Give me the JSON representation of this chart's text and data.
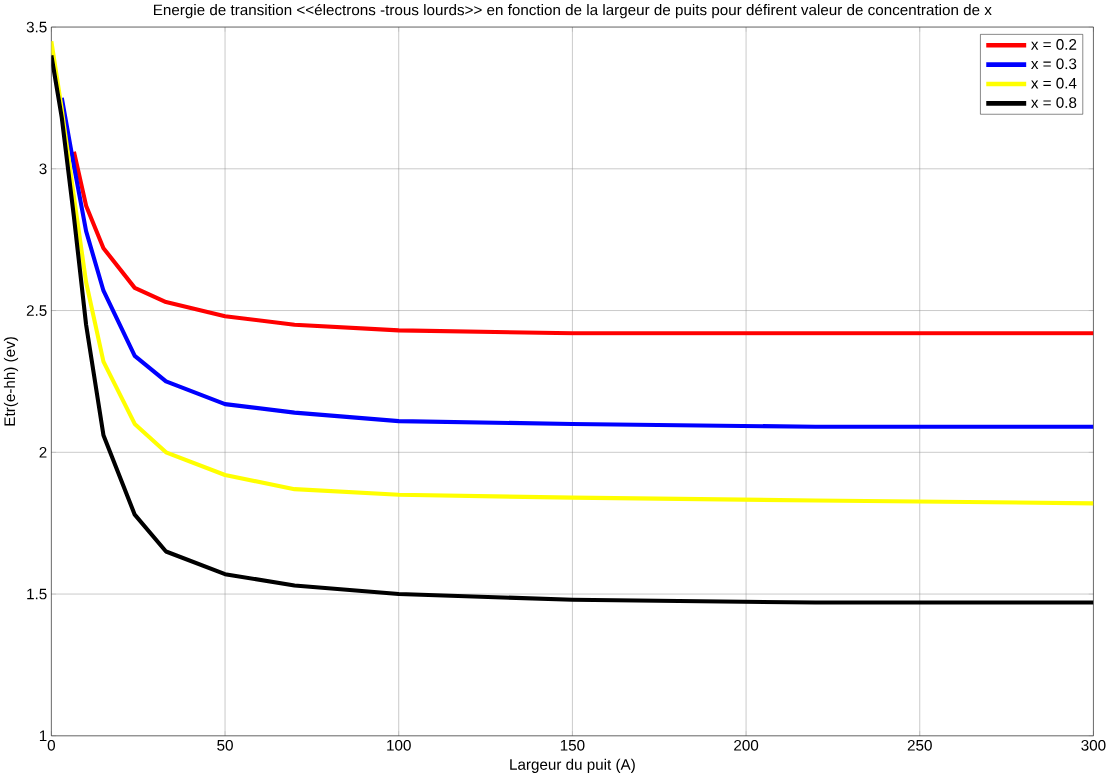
{
  "chart_data": {
    "type": "line",
    "title": "Energie de transition <<électrons -trous lourds>> en fonction de la largeur de puits pour défirent valeur de concentration de x",
    "xlabel": "Largeur du puit (A)",
    "ylabel": "Etr(e-hh) (ev)",
    "x": [
      0,
      3,
      6.5,
      10,
      15,
      24,
      33,
      50,
      70,
      100,
      150,
      220,
      300
    ],
    "series": [
      {
        "name": "x = 0.2",
        "color": "#ff0000",
        "values": [
          null,
          null,
          3.06,
          2.87,
          2.72,
          2.58,
          2.53,
          2.48,
          2.45,
          2.43,
          2.42,
          2.42,
          2.42
        ]
      },
      {
        "name": "x = 0.3",
        "color": "#0000ff",
        "values": [
          null,
          3.25,
          3.01,
          2.78,
          2.57,
          2.34,
          2.25,
          2.17,
          2.14,
          2.11,
          2.1,
          2.09,
          2.09
        ]
      },
      {
        "name": "x = 0.4",
        "color": "#ffff00",
        "values": [
          3.45,
          3.21,
          2.9,
          2.6,
          2.32,
          2.1,
          2.0,
          1.92,
          1.87,
          1.85,
          1.84,
          1.83,
          1.82
        ]
      },
      {
        "name": "x = 0.8",
        "color": "#000000",
        "values": [
          3.4,
          3.18,
          2.83,
          2.45,
          2.06,
          1.78,
          1.65,
          1.57,
          1.53,
          1.5,
          1.48,
          1.47,
          1.47
        ]
      }
    ],
    "xlim": [
      0,
      300
    ],
    "ylim": [
      1,
      3.5
    ],
    "xticks": [
      0,
      50,
      100,
      150,
      200,
      250,
      300
    ],
    "yticks": [
      1,
      1.5,
      2,
      2.5,
      3,
      3.5
    ],
    "grid": true,
    "legend": "top right",
    "marker": "none",
    "line_style": "solid"
  }
}
